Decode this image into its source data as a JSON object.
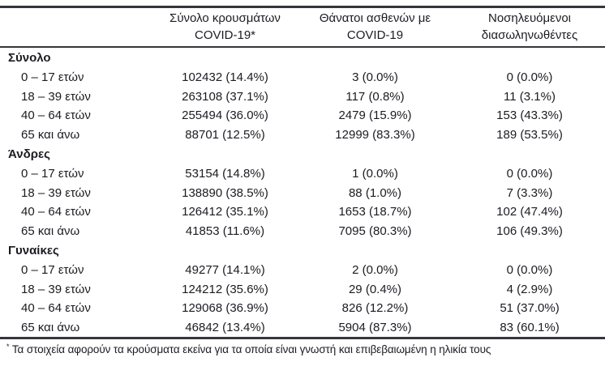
{
  "header": {
    "col_cases": {
      "line1": "Σύνολο κρουσμάτων",
      "line2": "COVID-19*"
    },
    "col_deaths": {
      "line1": "Θάνατοι ασθενών με",
      "line2": "COVID-19"
    },
    "col_intubated": {
      "line1": "Νοσηλευόμενοι",
      "line2": "διασωληνωθέντες"
    }
  },
  "sections": [
    {
      "label": "Σύνολο",
      "rows": [
        {
          "label": "0 – 17 ετών",
          "cases": "102432 (14.4%)",
          "deaths": "3 (0.0%)",
          "intubated": "0 (0.0%)"
        },
        {
          "label": "18 – 39 ετών",
          "cases": "263108 (37.1%)",
          "deaths": "117 (0.8%)",
          "intubated": "11 (3.1%)"
        },
        {
          "label": "40 – 64 ετών",
          "cases": "255494 (36.0%)",
          "deaths": "2479 (15.9%)",
          "intubated": "153 (43.3%)"
        },
        {
          "label": "65 και άνω",
          "cases": "88701 (12.5%)",
          "deaths": "12999 (83.3%)",
          "intubated": "189 (53.5%)"
        }
      ]
    },
    {
      "label": "Άνδρες",
      "rows": [
        {
          "label": "0 – 17 ετών",
          "cases": "53154 (14.8%)",
          "deaths": "1 (0.0%)",
          "intubated": "0 (0.0%)"
        },
        {
          "label": "18 – 39 ετών",
          "cases": "138890 (38.5%)",
          "deaths": "88 (1.0%)",
          "intubated": "7 (3.3%)"
        },
        {
          "label": "40 – 64 ετών",
          "cases": "126412 (35.1%)",
          "deaths": "1653 (18.7%)",
          "intubated": "102 (47.4%)"
        },
        {
          "label": "65 και άνω",
          "cases": "41853 (11.6%)",
          "deaths": "7095 (80.3%)",
          "intubated": "106 (49.3%)"
        }
      ]
    },
    {
      "label": "Γυναίκες",
      "rows": [
        {
          "label": "0 – 17 ετών",
          "cases": "49277 (14.1%)",
          "deaths": "2 (0.0%)",
          "intubated": "0 (0.0%)"
        },
        {
          "label": "18 – 39 ετών",
          "cases": "124212 (35.6%)",
          "deaths": "29 (0.4%)",
          "intubated": "4 (2.9%)"
        },
        {
          "label": "40 – 64 ετών",
          "cases": "129068 (36.9%)",
          "deaths": "826 (12.2%)",
          "intubated": "51 (37.0%)"
        },
        {
          "label": "65 και άνω",
          "cases": "46842 (13.4%)",
          "deaths": "5904 (87.3%)",
          "intubated": "83 (60.1%)"
        }
      ]
    }
  ],
  "footnote": {
    "marker": "*",
    "text": "Τα στοιχεία αφορούν τα κρούσματα εκείνα για τα οποία είναι γνωστή και επιβεβαιωμένη η ηλικία τους"
  }
}
